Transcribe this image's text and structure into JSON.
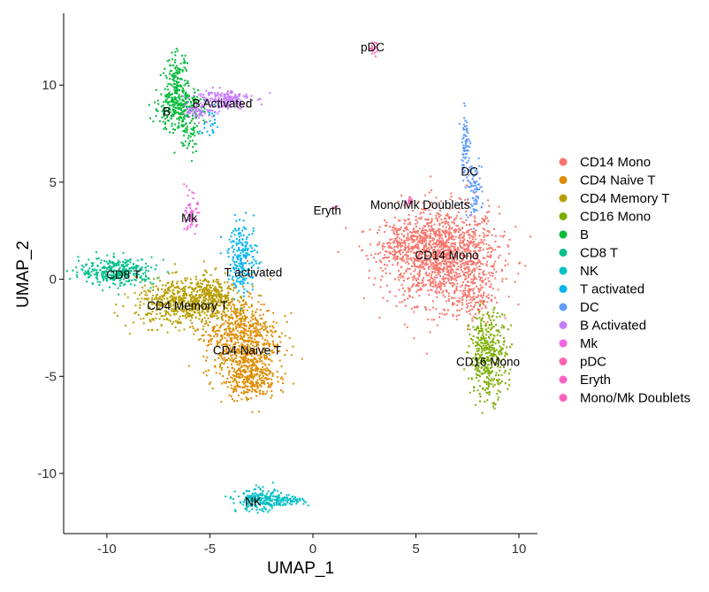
{
  "chart_data": {
    "type": "scatter",
    "title": "",
    "xlabel": "UMAP_1",
    "ylabel": "UMAP_2",
    "xlim": [
      -12.1,
      10.9
    ],
    "ylim": [
      -13.1,
      13.7
    ],
    "x_ticks": [
      -10,
      -5,
      0,
      5,
      10
    ],
    "x_tick_labels": [
      "-10",
      "-5",
      "0",
      "5",
      "10"
    ],
    "y_ticks": [
      -10,
      -5,
      0,
      5,
      10
    ],
    "y_tick_labels": [
      "-10",
      "-5",
      "0",
      "5",
      "10"
    ],
    "grid": false,
    "legend_position": "right",
    "clusters": [
      {
        "name": "CD14 Mono",
        "color": "#F8766D",
        "label": {
          "x": 6.5,
          "y": 1.2
        },
        "blobs": [
          {
            "x": 6.3,
            "y": 1.2,
            "sx": 1.35,
            "sy": 1.25,
            "n": 1400
          },
          {
            "x": 4.2,
            "y": 1.8,
            "sx": 0.6,
            "sy": 0.5,
            "n": 150
          },
          {
            "x": 7.8,
            "y": -0.9,
            "sx": 0.5,
            "sy": 0.7,
            "n": 120
          }
        ]
      },
      {
        "name": "CD4 Naive T",
        "color": "#DE8C00",
        "label": {
          "x": -3.2,
          "y": -3.7
        },
        "blobs": [
          {
            "x": -3.5,
            "y": -3.0,
            "sx": 0.9,
            "sy": 1.1,
            "n": 700
          },
          {
            "x": -3.0,
            "y": -5.0,
            "sx": 0.6,
            "sy": 0.6,
            "n": 300
          }
        ]
      },
      {
        "name": "CD4 Memory T",
        "color": "#B79F00",
        "label": {
          "x": -6.1,
          "y": -1.4
        },
        "blobs": [
          {
            "x": -6.2,
            "y": -1.2,
            "sx": 1.2,
            "sy": 0.6,
            "n": 650
          },
          {
            "x": -4.8,
            "y": -0.8,
            "sx": 0.5,
            "sy": 0.5,
            "n": 150
          }
        ]
      },
      {
        "name": "CD16 Mono",
        "color": "#7CAE00",
        "label": {
          "x": 8.5,
          "y": -4.3
        },
        "blobs": [
          {
            "x": 8.5,
            "y": -3.9,
            "sx": 0.45,
            "sy": 1.1,
            "n": 400
          }
        ]
      },
      {
        "name": "B",
        "color": "#00BA38",
        "label": {
          "x": -7.1,
          "y": 8.6
        },
        "blobs": [
          {
            "x": -6.5,
            "y": 8.8,
            "sx": 0.6,
            "sy": 0.6,
            "n": 300
          },
          {
            "x": -6.6,
            "y": 10.3,
            "sx": 0.25,
            "sy": 0.7,
            "n": 120
          },
          {
            "x": -6.0,
            "y": 7.4,
            "sx": 0.3,
            "sy": 0.5,
            "n": 40
          }
        ]
      },
      {
        "name": "CD8 T",
        "color": "#00C08B",
        "label": {
          "x": -9.2,
          "y": 0.2
        },
        "blobs": [
          {
            "x": -9.5,
            "y": 0.4,
            "sx": 0.9,
            "sy": 0.35,
            "n": 350
          }
        ]
      },
      {
        "name": "NK",
        "color": "#00BFC4",
        "label": {
          "x": -2.9,
          "y": -11.5
        },
        "blobs": [
          {
            "x": -2.6,
            "y": -11.4,
            "sx": 0.55,
            "sy": 0.28,
            "n": 220
          },
          {
            "x": -1.3,
            "y": -11.4,
            "sx": 0.45,
            "sy": 0.12,
            "n": 80
          }
        ]
      },
      {
        "name": "T activated",
        "color": "#00B4F0",
        "label": {
          "x": -2.9,
          "y": 0.3
        },
        "blobs": [
          {
            "x": -3.4,
            "y": 1.1,
            "sx": 0.35,
            "sy": 0.9,
            "n": 220
          },
          {
            "x": -5.0,
            "y": 8.0,
            "sx": 0.25,
            "sy": 0.4,
            "n": 25
          }
        ]
      },
      {
        "name": "DC",
        "color": "#619CFF",
        "label": {
          "x": 7.6,
          "y": 5.5
        },
        "blobs": [
          {
            "x": 7.4,
            "y": 7.0,
            "sx": 0.12,
            "sy": 0.8,
            "n": 70
          },
          {
            "x": 7.8,
            "y": 4.6,
            "sx": 0.2,
            "sy": 0.7,
            "n": 90
          }
        ]
      },
      {
        "name": "B Activated",
        "color": "#C77CFF",
        "label": {
          "x": -4.4,
          "y": 9.0
        },
        "blobs": [
          {
            "x": -4.4,
            "y": 9.3,
            "sx": 0.7,
            "sy": 0.25,
            "n": 180
          },
          {
            "x": -5.4,
            "y": 8.6,
            "sx": 0.4,
            "sy": 0.2,
            "n": 60
          }
        ]
      },
      {
        "name": "Mk",
        "color": "#F564E3",
        "label": {
          "x": -6.0,
          "y": 3.1
        },
        "blobs": [
          {
            "x": -5.9,
            "y": 3.3,
            "sx": 0.15,
            "sy": 0.5,
            "n": 60
          }
        ]
      },
      {
        "name": "pDC",
        "color": "#FF64B0",
        "label": {
          "x": 2.9,
          "y": 11.9
        },
        "blobs": [
          {
            "x": 2.9,
            "y": 11.9,
            "sx": 0.1,
            "sy": 0.15,
            "n": 20
          }
        ]
      },
      {
        "name": "Eryth",
        "color": "#FF61C3",
        "label": {
          "x": 0.7,
          "y": 3.5
        },
        "blobs": [
          {
            "x": 1.1,
            "y": 3.7,
            "sx": 0.08,
            "sy": 0.08,
            "n": 6
          }
        ]
      },
      {
        "name": "Mono/Mk Doublets",
        "color": "#FF62BC",
        "label": {
          "x": 5.2,
          "y": 3.8
        },
        "blobs": [
          {
            "x": 4.7,
            "y": 4.0,
            "sx": 0.12,
            "sy": 0.1,
            "n": 12
          }
        ]
      }
    ]
  }
}
